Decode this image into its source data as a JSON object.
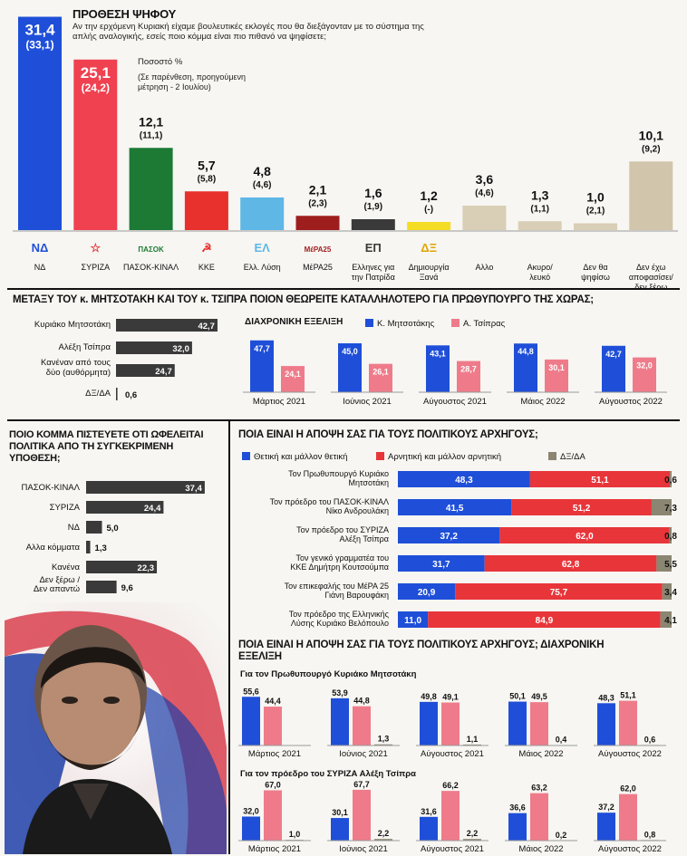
{
  "vote_intention": {
    "title": "ΠΡΟΘΕΣΗ ΨΗΦΟΥ",
    "question": "Αν την ερχόμενη Κυριακή είχαμε βουλευτικές εκλογές που θα διεξάγονταν με το σύστημα της απλής αναλογικής, εσείς ποιο κόμμα είναι πιο πιθανό να ψηφίσετε;",
    "note_percent": "Ποσοστό %",
    "note_previous": "(Σε παρένθεση, προηγούμενη μέτρηση - 2 Ιουλίου)"
  },
  "pm_preference": {
    "title": "ΜΕΤΑΞΥ ΤΟΥ κ. ΜΗΤΣΟΤΑΚΗ ΚΑΙ ΤΟΥ κ. ΤΣΙΠΡΑ ΠΟΙΟΝ ΘΕΩΡΕΙΤΕ ΚΑΤΑΛΛΗΛΟΤΕΡΟ ΓΙΑ ΠΡΩΘΥΠΟΥΡΓΟ ΤΗΣ ΧΩΡΑΣ;",
    "trend_title": "ΔΙΑΧΡΟΝΙΚΗ ΕΞΕΛΙΞΗ"
  },
  "benefit": {
    "title": "ΠΟΙΟ ΚΟΜΜΑ ΠΙΣΤΕΥΕΤΕ ΟΤΙ ΩΦΕΛΕΙΤΑΙ ΠΟΛΙΤΙΚΑ ΑΠΟ ΤΗ ΣΥΓΚΕΚΡΙΜΕΝΗ ΥΠΟΘΕΣΗ;"
  },
  "leaders_opinion": {
    "title": "ΠΟΙΑ ΕΙΝΑΙ Η ΑΠΟΨΗ ΣΑΣ ΓΙΑ ΤΟΥΣ ΠΟΛΙΤΙΚΟΥΣ ΑΡΧΗΓΟΥΣ;"
  },
  "leaders_trend": {
    "title": "ΠΟΙΑ ΕΙΝΑΙ Η ΑΠΟΨΗ ΣΑΣ ΓΙΑ ΤΟΥΣ ΠΟΛΙΤΙΚΟΥΣ ΑΡΧΗΓΟΥΣ; ΔΙΑΧΡΟΝΙΚΗ ΕΞΕΛΙΞΗ"
  },
  "colors": {
    "blue": "#1f4fd8",
    "red": "#e8353a",
    "pink": "#ef7b8a",
    "green": "#1c7a34",
    "grey_bar": "#3a3a3a",
    "beige": "#cfc3a8",
    "dkxda": "#8a8672"
  },
  "chart_data": [
    {
      "id": "vote",
      "type": "bar",
      "title": "ΠΡΟΘΕΣΗ ΨΗΦΟΥ",
      "categories": [
        "ΝΔ",
        "ΣΥΡΙΖΑ",
        "ΠΑΣΟΚ-ΚΙΝΑΛ",
        "ΚΚΕ",
        "Ελλ. Λύση",
        "ΜέΡΑ25",
        "Ελληνες για την Πατρίδα",
        "Δημιουργία Ξανά",
        "Αλλο",
        "Ακυρο/ λευκό",
        "Δεν θα ψηφίσω",
        "Δεν έχω αποφασίσει/ δεν ξέρω"
      ],
      "values": [
        31.4,
        25.1,
        12.1,
        5.7,
        4.8,
        2.1,
        1.6,
        1.2,
        3.6,
        1.3,
        1.0,
        10.1
      ],
      "labels": [
        "31,4",
        "25,1",
        "12,1",
        "5,7",
        "4,8",
        "2,1",
        "1,6",
        "1,2",
        "3,6",
        "1,3",
        "1,0",
        "10,1"
      ],
      "previous_labels": [
        "(33,1)",
        "(24,2)",
        "(11,1)",
        "(5,8)",
        "(4,6)",
        "(2,3)",
        "(1,9)",
        "(-)",
        "(4,6)",
        "(1,1)",
        "(2,1)",
        "(9,2)"
      ],
      "bar_colors": [
        "#1f4fd8",
        "#ef4150",
        "#1c7a34",
        "#e8302d",
        "#5fb7e6",
        "#9e1e1e",
        "#3a3a3a",
        "#f5dd26",
        "#d9ceb6",
        "#d9ceb6",
        "#d9ceb6",
        "#d1c6ab"
      ],
      "logos": [
        "ΝΔ",
        "☆",
        "ΠΑΣΟΚ",
        "☭",
        "ΕΛ",
        "ΜέΡΑ25",
        "ΕΠ",
        "ΔΞ",
        "",
        "",
        "",
        ""
      ],
      "ylim": [
        0,
        32
      ]
    },
    {
      "id": "pm_hbar",
      "type": "bar",
      "orientation": "horizontal",
      "categories": [
        "Κυριάκο Μητσοτάκη",
        "Αλέξη Τσίπρα",
        "Κανέναν από τους δύο (αυθόρμητα)",
        "ΔΞ/ΔΑ"
      ],
      "values": [
        42.7,
        32.0,
        24.7,
        0.6
      ],
      "labels": [
        "42,7",
        "32,0",
        "24,7",
        "0,6"
      ],
      "xlim": [
        0,
        45
      ]
    },
    {
      "id": "pm_trend",
      "type": "bar",
      "categories": [
        "Μάρτιος 2021",
        "Ιούνιος 2021",
        "Αύγουστος 2021",
        "Μάιος 2022",
        "Αύγουστος 2022"
      ],
      "legend": [
        "Κ. Μητσοτάκης",
        "Α. Τσίπρας"
      ],
      "series": [
        {
          "name": "Κ. Μητσοτάκης",
          "values": [
            47.7,
            45.0,
            43.1,
            44.8,
            42.7
          ],
          "labels": [
            "47,7",
            "45,0",
            "43,1",
            "44,8",
            "42,7"
          ]
        },
        {
          "name": "Α. Τσίπρας",
          "values": [
            24.1,
            26.1,
            28.7,
            30.1,
            32.0
          ],
          "labels": [
            "24,1",
            "26,1",
            "28,7",
            "30,1",
            "32,0"
          ]
        }
      ],
      "ylim": [
        0,
        50
      ]
    },
    {
      "id": "benefit_hbar",
      "type": "bar",
      "orientation": "horizontal",
      "categories": [
        "ΠΑΣΟΚ-ΚΙΝΑΛ",
        "ΣΥΡΙΖΑ",
        "ΝΔ",
        "Αλλα κόμματα",
        "Κανένα",
        "Δεν ξέρω / Δεν απαντώ"
      ],
      "values": [
        37.4,
        24.4,
        5.0,
        1.3,
        22.3,
        9.6
      ],
      "labels": [
        "37,4",
        "24,4",
        "5,0",
        "1,3",
        "22,3",
        "9,6"
      ],
      "xlim": [
        0,
        40
      ]
    },
    {
      "id": "leaders_stacked",
      "type": "bar",
      "orientation": "horizontal",
      "stacked": true,
      "legend": [
        "Θετική και μάλλον θετική",
        "Αρνητική και μάλλον αρνητική",
        "ΔΞ/ΔΑ"
      ],
      "categories": [
        "Τον Πρωθυπουργό Κυριάκο Μητσοτάκη",
        "Τον πρόεδρο του ΠΑΣΟΚ-ΚΙΝΑΛ Νίκο Ανδρουλάκη",
        "Τον πρόεδρο του ΣΥΡΙΖΑ Αλέξη Τσίπρα",
        "Τον γενικό γραμματέα του ΚΚΕ Δημήτρη Κουτσούμπα",
        "Τον επικεφαλής του ΜέΡΑ 25 Γιάνη Βαρουφάκη",
        "Τον πρόεδρο της Ελληνικής Λύσης Κυριάκο Βελόπουλο"
      ],
      "series": [
        {
          "name": "Θετική και μάλλον θετική",
          "values": [
            48.3,
            41.5,
            37.2,
            31.7,
            20.9,
            11.0
          ],
          "labels": [
            "48,3",
            "41,5",
            "37,2",
            "31,7",
            "20,9",
            "11,0"
          ]
        },
        {
          "name": "Αρνητική και μάλλον αρνητική",
          "values": [
            51.1,
            51.2,
            62.0,
            62.8,
            75.7,
            84.9
          ],
          "labels": [
            "51,1",
            "51,2",
            "62,0",
            "62,8",
            "75,7",
            "84,9"
          ]
        },
        {
          "name": "ΔΞ/ΔΑ",
          "values": [
            0.6,
            7.3,
            0.8,
            5.5,
            3.4,
            4.1
          ],
          "labels": [
            "0,6",
            "7,3",
            "0,8",
            "5,5",
            "3,4",
            "4,1"
          ]
        }
      ]
    },
    {
      "id": "mitsotakis_trend",
      "type": "bar",
      "title": "Για τον Πρωθυπουργό Κυριάκο Μητσοτάκη",
      "categories": [
        "Μάρτιος 2021",
        "Ιούνιος 2021",
        "Αύγουστος 2021",
        "Μάιος 2022",
        "Αύγουστος 2022"
      ],
      "series": [
        {
          "values": [
            55.6,
            53.9,
            49.8,
            50.1,
            48.3
          ],
          "labels": [
            "55,6",
            "53,9",
            "49,8",
            "50,1",
            "48,3"
          ]
        },
        {
          "values": [
            44.4,
            44.8,
            49.1,
            49.5,
            51.1
          ],
          "labels": [
            "44,4",
            "44,8",
            "49,1",
            "49,5",
            "51,1"
          ]
        },
        {
          "values": [
            0,
            1.3,
            1.1,
            0.4,
            0.6
          ],
          "labels": [
            "",
            "1,3",
            "1,1",
            "0,4",
            "0,6"
          ]
        }
      ],
      "ylim": [
        0,
        60
      ]
    },
    {
      "id": "tsipras_trend",
      "type": "bar",
      "title": "Για τον πρόεδρο του ΣΥΡΙΖΑ Αλέξη Τσίπρα",
      "categories": [
        "Μάρτιος 2021",
        "Ιούνιος 2021",
        "Αύγουστος 2021",
        "Μάιος 2022",
        "Αύγουστος 2022"
      ],
      "series": [
        {
          "values": [
            32.0,
            30.1,
            31.6,
            36.6,
            37.2
          ],
          "labels": [
            "32,0",
            "30,1",
            "31,6",
            "36,6",
            "37,2"
          ]
        },
        {
          "values": [
            67.0,
            67.7,
            66.2,
            63.2,
            62.0
          ],
          "labels": [
            "67,0",
            "67,7",
            "66,2",
            "63,2",
            "62,0"
          ]
        },
        {
          "values": [
            1.0,
            2.2,
            2.2,
            0.2,
            0.8
          ],
          "labels": [
            "1,0",
            "2,2",
            "2,2",
            "0,2",
            "0,8"
          ]
        }
      ],
      "ylim": [
        0,
        70
      ]
    }
  ]
}
